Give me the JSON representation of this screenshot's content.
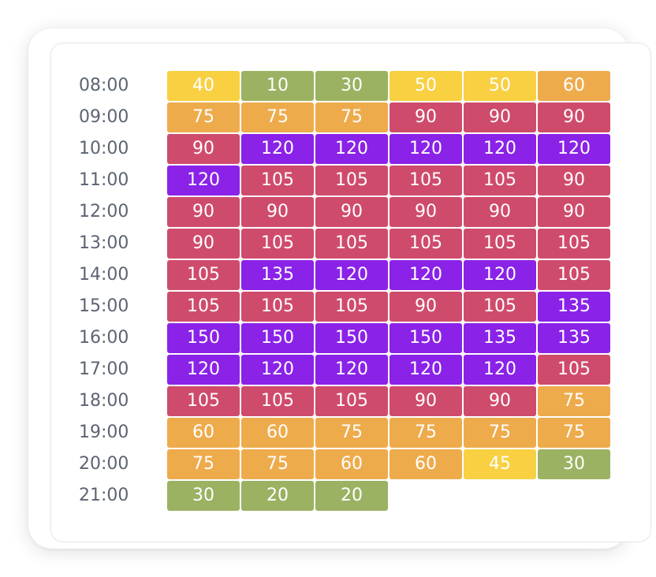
{
  "chart_data": {
    "type": "heatmap",
    "rows": [
      "08:00",
      "09:00",
      "10:00",
      "11:00",
      "12:00",
      "13:00",
      "14:00",
      "15:00",
      "16:00",
      "17:00",
      "18:00",
      "19:00",
      "20:00",
      "21:00"
    ],
    "values": [
      [
        40,
        10,
        30,
        50,
        50,
        60
      ],
      [
        75,
        75,
        75,
        90,
        90,
        90
      ],
      [
        90,
        120,
        120,
        120,
        120,
        120
      ],
      [
        120,
        105,
        105,
        105,
        105,
        90
      ],
      [
        90,
        90,
        90,
        90,
        90,
        90
      ],
      [
        90,
        105,
        105,
        105,
        105,
        105
      ],
      [
        105,
        135,
        120,
        120,
        120,
        105
      ],
      [
        105,
        105,
        105,
        90,
        105,
        135
      ],
      [
        150,
        150,
        150,
        150,
        135,
        135
      ],
      [
        120,
        120,
        120,
        120,
        120,
        105
      ],
      [
        105,
        105,
        105,
        90,
        90,
        75
      ],
      [
        60,
        60,
        75,
        75,
        75,
        75
      ],
      [
        75,
        75,
        60,
        60,
        45,
        30
      ],
      [
        30,
        20,
        20
      ]
    ],
    "color_scale": [
      {
        "max": 40,
        "color": "#9bb262"
      },
      {
        "max": 50,
        "color": "#f8d042"
      },
      {
        "max": 80,
        "color": "#eeab4c"
      },
      {
        "max": 110,
        "color": "#cf4b6c"
      },
      {
        "max": 999,
        "color": "#8a22e8"
      }
    ],
    "overrides": [
      {
        "row": 0,
        "col": 0,
        "color": "#f8d042"
      }
    ]
  }
}
